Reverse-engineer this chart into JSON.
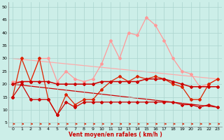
{
  "x": [
    0,
    1,
    2,
    3,
    4,
    5,
    6,
    7,
    8,
    9,
    10,
    11,
    12,
    13,
    14,
    15,
    16,
    17,
    18,
    19,
    20,
    21,
    22,
    23
  ],
  "wind_gust_max": [
    21,
    21,
    21,
    30,
    30,
    21,
    25,
    22,
    21,
    22,
    28,
    37,
    30,
    40,
    39,
    46,
    43,
    37,
    30,
    25,
    24,
    19,
    20,
    22
  ],
  "wind_avg": [
    20,
    21,
    21,
    21,
    21,
    20,
    20,
    20,
    20,
    20,
    21,
    21,
    21,
    21,
    21,
    22,
    22,
    22,
    21,
    20,
    19,
    19,
    19,
    19
  ],
  "wind_gust_med": [
    15,
    30,
    21,
    30,
    14,
    8,
    16,
    12,
    14,
    14,
    18,
    21,
    23,
    21,
    23,
    22,
    23,
    22,
    20,
    19,
    14,
    14,
    20,
    22
  ],
  "wind_min": [
    15,
    20,
    14,
    14,
    14,
    8,
    13,
    11,
    13,
    13,
    13,
    13,
    13,
    13,
    13,
    13,
    13,
    13,
    13,
    12,
    12,
    11,
    12,
    11
  ],
  "trend_light_y0": 30,
  "trend_light_y1": 22,
  "trend_dark_y0": 20,
  "trend_dark_y1": 11,
  "background_color": "#cceee8",
  "grid_color": "#aad4ce",
  "color_gust_max": "#ff9999",
  "color_avg": "#cc0000",
  "color_gust_med": "#dd2200",
  "color_min": "#cc0000",
  "color_trend_light": "#ffaaaa",
  "color_trend_dark": "#cc0000",
  "yticks": [
    5,
    10,
    15,
    20,
    25,
    30,
    35,
    40,
    45,
    50
  ],
  "ylim": [
    3.5,
    52
  ],
  "xlim": [
    -0.5,
    23.5
  ],
  "xlabel": "Vent moyen/en rafales ( km/h )",
  "xlabel_color": "#cc0000",
  "tick_fontsize": 4.5,
  "xlabel_fontsize": 5.5
}
